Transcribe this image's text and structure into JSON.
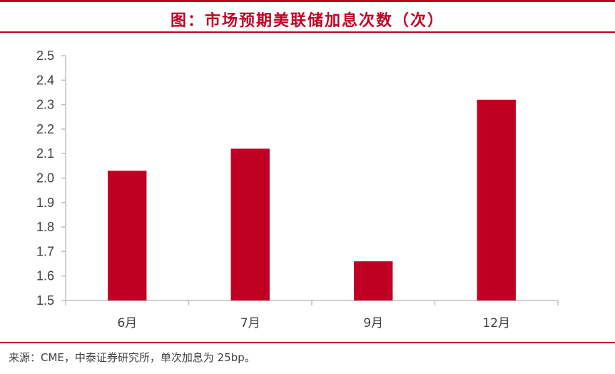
{
  "title": "图：市场预期美联储加息次数（次）",
  "source_text": "来源：CME，中泰证券研究所，单次加息为 25bp。",
  "colors": {
    "accent": "#c00023",
    "bar": "#c00023",
    "axis": "#bfbfbf",
    "text": "#404040"
  },
  "chart_data": {
    "type": "bar",
    "title": "图：市场预期美联储加息次数（次）",
    "categories": [
      "6月",
      "7月",
      "9月",
      "12月"
    ],
    "values": [
      2.03,
      2.12,
      1.66,
      2.32
    ],
    "ylim": [
      1.5,
      2.5
    ],
    "yticks": [
      "2.5",
      "2.4",
      "2.3",
      "2.2",
      "2.1",
      "2.0",
      "1.9",
      "1.8",
      "1.7",
      "1.6",
      "1.5"
    ],
    "xlabel": "",
    "ylabel": "",
    "grid": false,
    "legend": "none"
  }
}
